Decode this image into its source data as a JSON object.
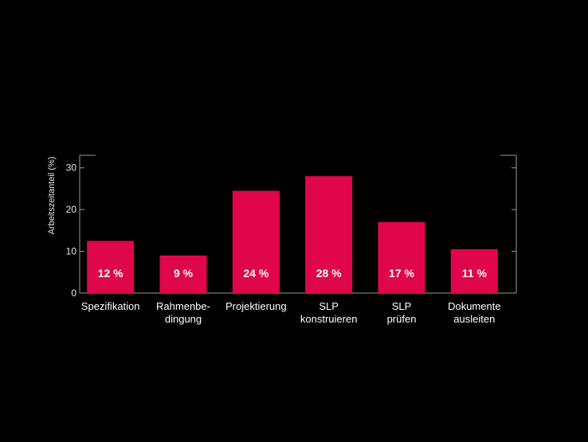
{
  "chart_data": {
    "type": "bar",
    "categories": [
      [
        "Spezifikation"
      ],
      [
        "Rahmenbe-",
        "dingung"
      ],
      [
        "Projektierung"
      ],
      [
        "SLP",
        "konstruieren"
      ],
      [
        "SLP",
        "prüfen"
      ],
      [
        "Dokumente",
        "ausleiten"
      ]
    ],
    "values": [
      12.5,
      9,
      24.5,
      28,
      17,
      10.5
    ],
    "data_labels": [
      "12 %",
      "9 %",
      "24 %",
      "28 %",
      "17 %",
      "11 %"
    ],
    "ylabel": "Arbeitszeitanteil (%)",
    "xlabel": "",
    "yticks": [
      0,
      10,
      20,
      30
    ],
    "ylim": [
      0,
      33
    ],
    "bar_color": "#e0064b",
    "axis_color": "#9a9a9a",
    "grid": false
  }
}
